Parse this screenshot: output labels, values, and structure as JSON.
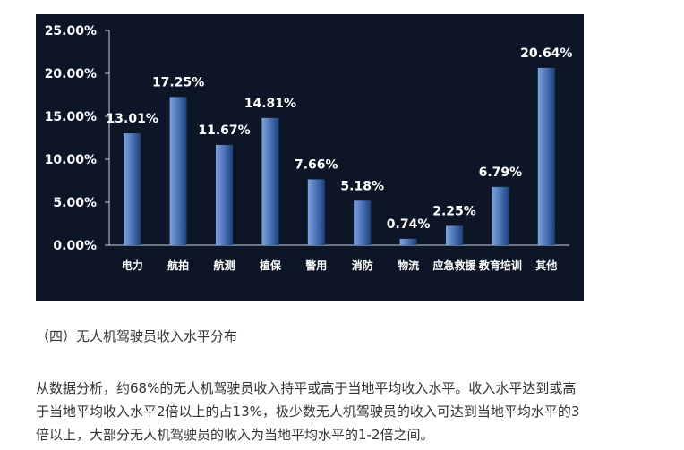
{
  "chart_data": {
    "type": "bar",
    "categories": [
      "电力",
      "航拍",
      "航测",
      "植保",
      "警用",
      "消防",
      "物流",
      "应急救援",
      "教育培训",
      "其他"
    ],
    "values": [
      13.01,
      17.25,
      11.67,
      14.81,
      7.66,
      5.18,
      0.74,
      2.25,
      6.79,
      20.64
    ],
    "data_labels": [
      "13.01%",
      "17.25%",
      "11.67%",
      "14.81%",
      "7.66%",
      "5.18%",
      "0.74%",
      "2.25%",
      "6.79%",
      "20.64%"
    ],
    "y_ticks": [
      0,
      5,
      10,
      15,
      20,
      25
    ],
    "y_tick_labels": [
      "0.00%",
      "5.00%",
      "10.00%",
      "15.00%",
      "20.00%",
      "25.00%"
    ],
    "ylim": [
      0,
      25
    ],
    "title": "",
    "xlabel": "",
    "ylabel": "",
    "grid": false,
    "colors": {
      "background": "#0c1626",
      "bar_light": "#7ea3dc",
      "bar_dark": "#1d3f7c",
      "text": "#ffffff",
      "axis": "#c9d3e2"
    }
  },
  "section": {
    "heading": "（四）无人机驾驶员收入水平分布"
  },
  "body": {
    "line1": "从数据分析，约68%的无人机驾驶员收入持平或高于当地平均收入水平。收入水平达到或高",
    "line2": "于当地平均收入水平2倍以上的占13%，极少数无人机驾驶员的收入可达到当地平均水平的3",
    "line3": "倍以上，大部分无人机驾驶员的收入为当地平均水平的1-2倍之间。"
  }
}
